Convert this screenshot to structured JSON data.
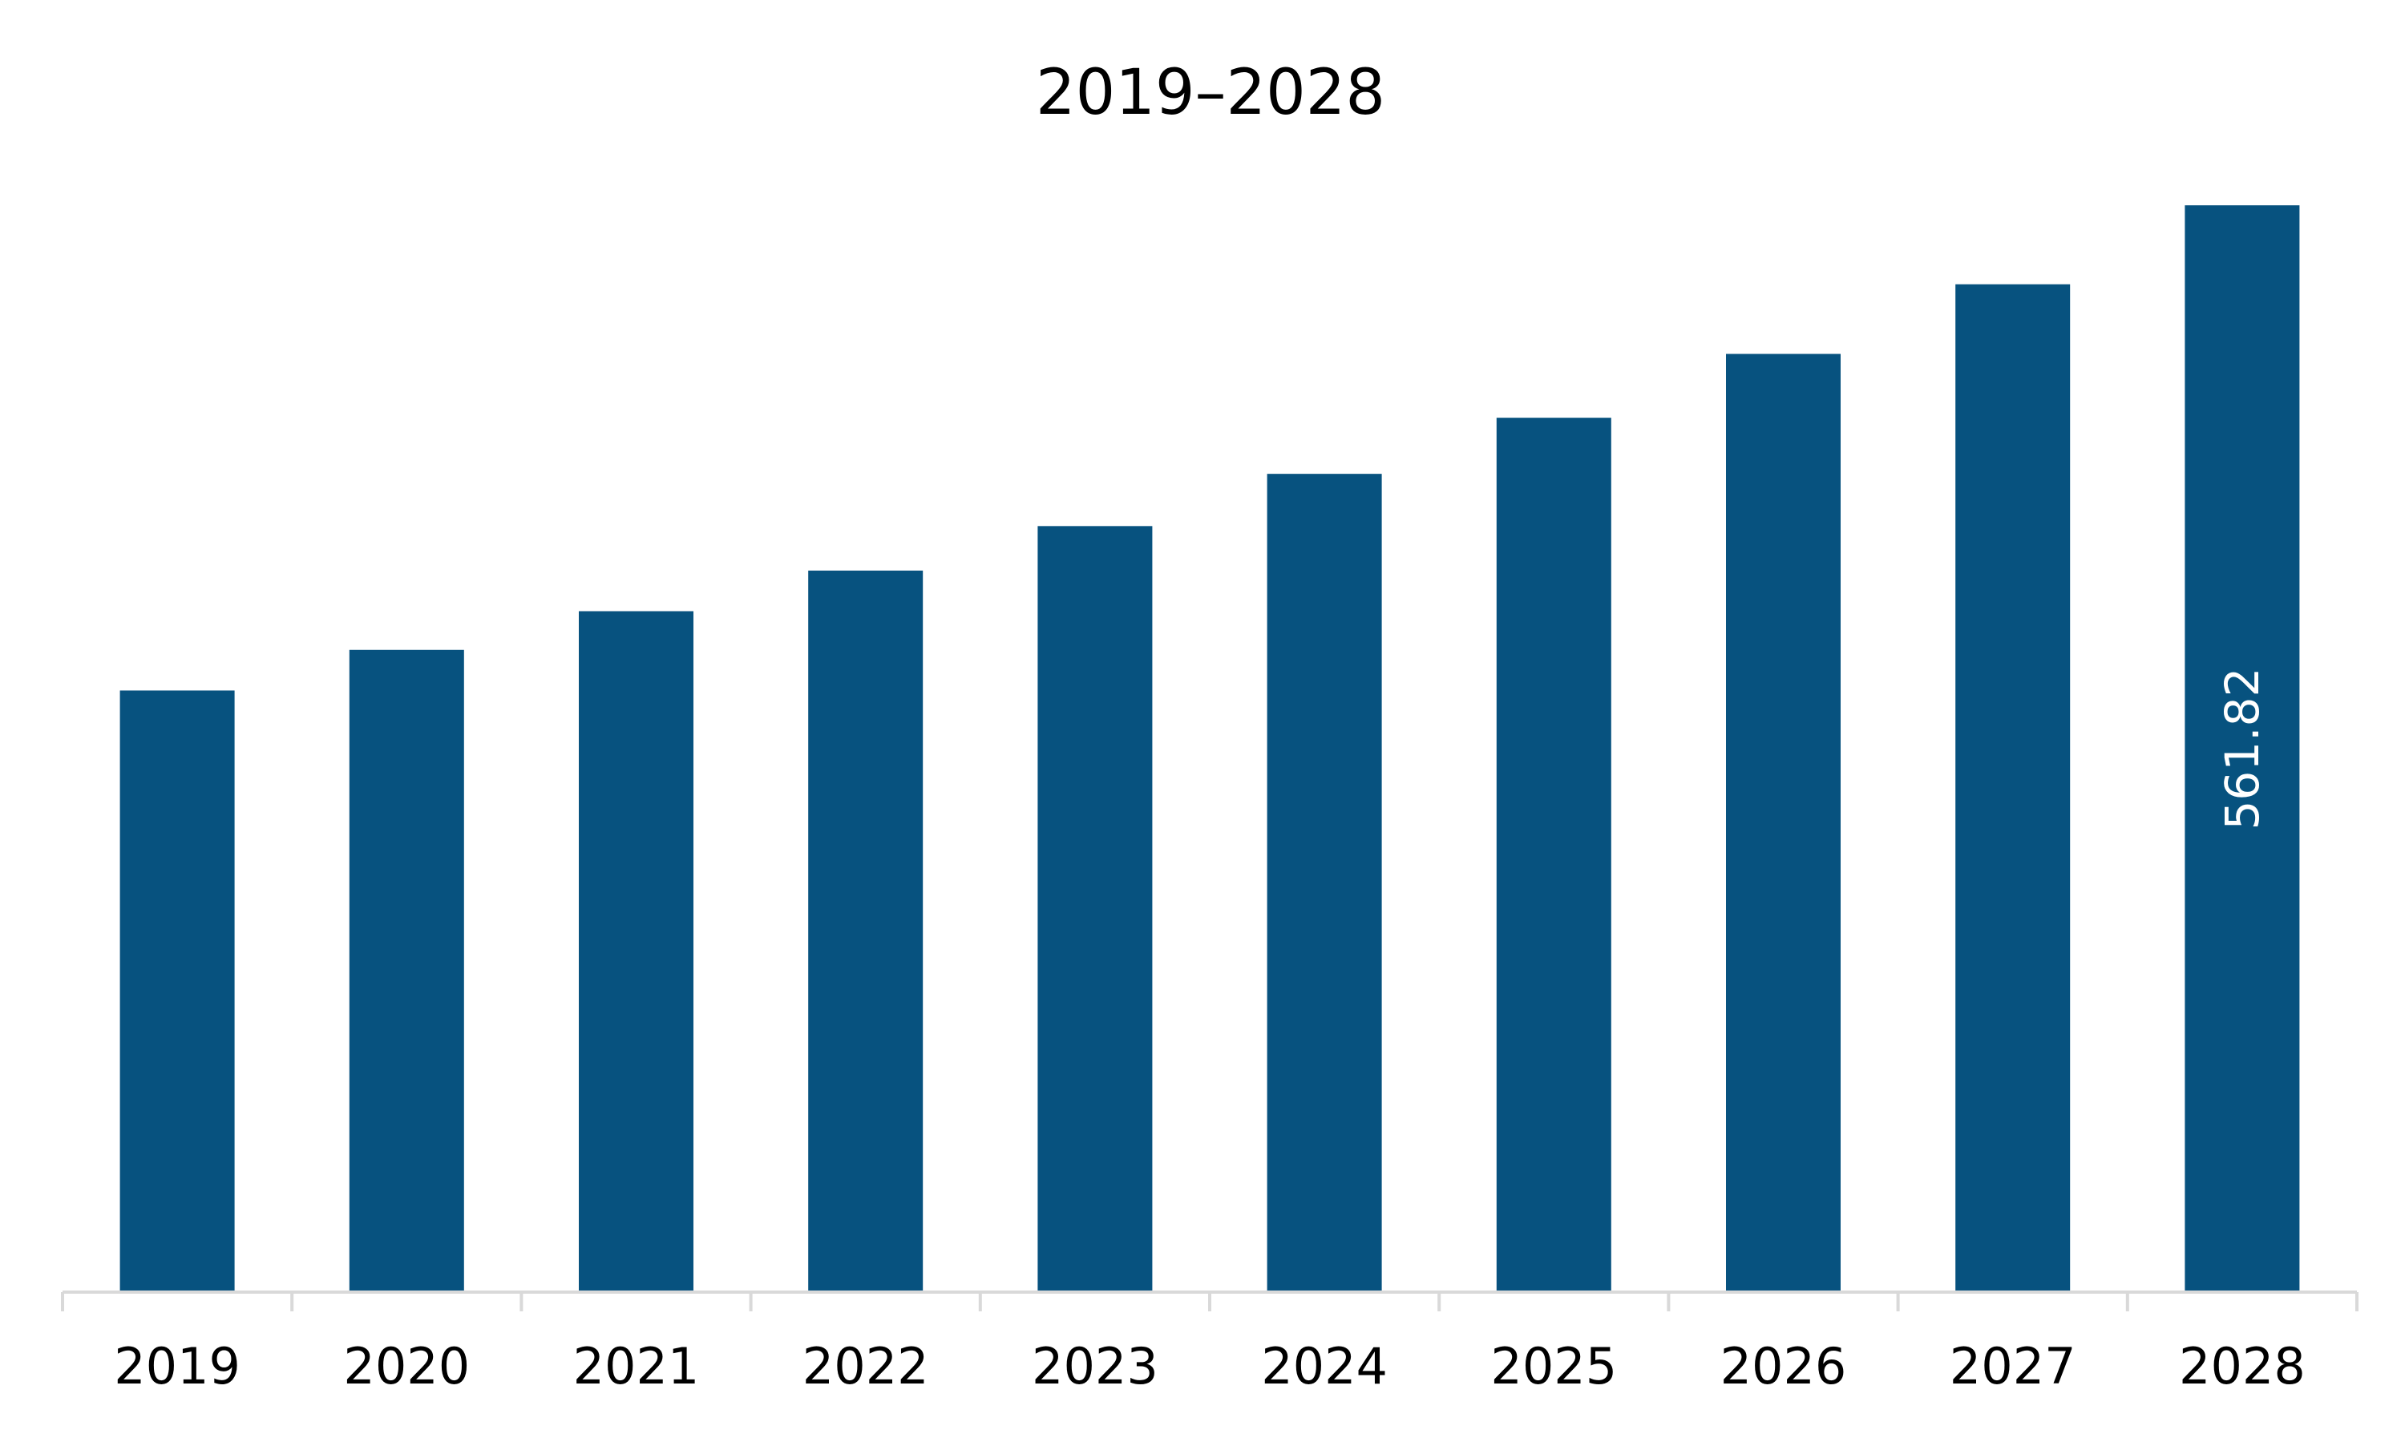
{
  "chart_data": {
    "type": "bar",
    "title": "2019–2028",
    "xlabel": "",
    "ylabel": "",
    "categories": [
      "2019",
      "2020",
      "2021",
      "2022",
      "2023",
      "2024",
      "2025",
      "2026",
      "2027",
      "2028"
    ],
    "values": [
      311,
      332,
      352,
      373,
      396,
      423,
      452,
      485,
      521,
      561.82
    ],
    "data_labels": [
      "",
      "",
      "",
      "",
      "",
      "",
      "",
      "",
      "",
      "561.82"
    ],
    "ylim": [
      0,
      600
    ],
    "grid": false,
    "legend": "none",
    "colors": {
      "bar": "#07527F",
      "axis": "#D9D9D9",
      "label_inside": "#FFFFFF",
      "text": "#000000"
    }
  }
}
